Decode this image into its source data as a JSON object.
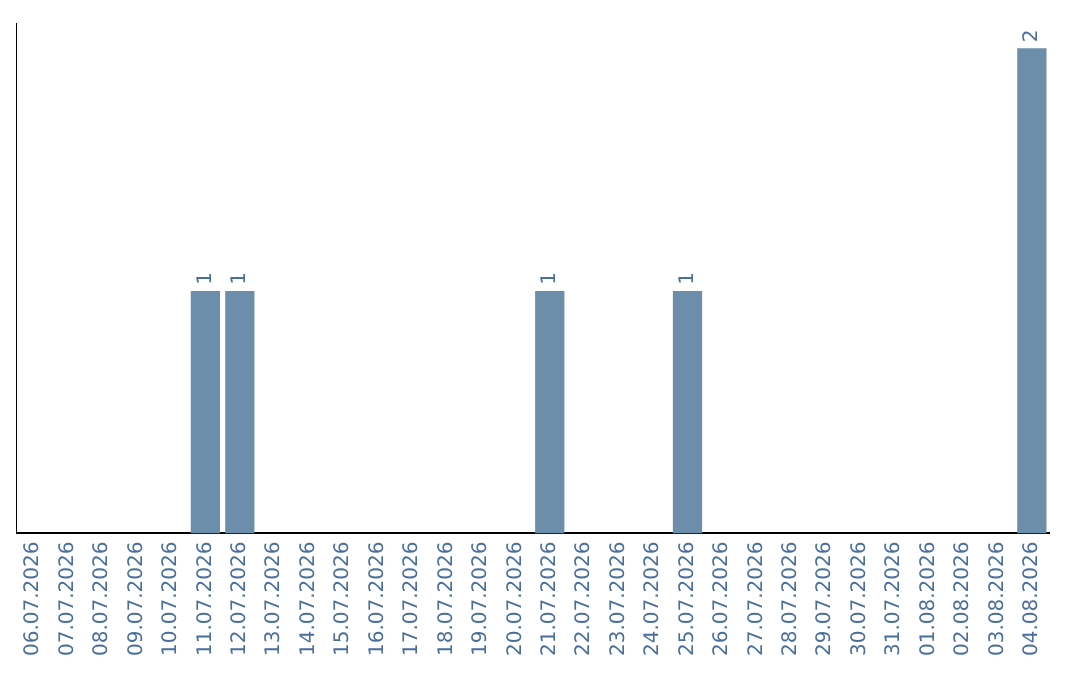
{
  "chart_data": {
    "type": "bar",
    "categories": [
      "06.07.2026",
      "07.07.2026",
      "08.07.2026",
      "09.07.2026",
      "10.07.2026",
      "11.07.2026",
      "12.07.2026",
      "13.07.2026",
      "14.07.2026",
      "15.07.2026",
      "16.07.2026",
      "17.07.2026",
      "18.07.2026",
      "19.07.2026",
      "20.07.2026",
      "21.07.2026",
      "22.07.2026",
      "23.07.2026",
      "24.07.2026",
      "25.07.2026",
      "26.07.2026",
      "27.07.2026",
      "28.07.2026",
      "29.07.2026",
      "30.07.2026",
      "31.07.2026",
      "01.08.2026",
      "02.08.2026",
      "03.08.2026",
      "04.08.2026"
    ],
    "values": [
      0,
      0,
      0,
      0,
      0,
      1,
      1,
      0,
      0,
      0,
      0,
      0,
      0,
      0,
      0,
      1,
      0,
      0,
      0,
      1,
      0,
      0,
      0,
      0,
      0,
      0,
      0,
      0,
      0,
      2
    ],
    "value_labels": [
      null,
      null,
      null,
      null,
      null,
      "1",
      "1",
      null,
      null,
      null,
      null,
      null,
      null,
      null,
      null,
      "1",
      null,
      null,
      null,
      "1",
      null,
      null,
      null,
      null,
      null,
      null,
      null,
      null,
      null,
      "2"
    ],
    "color": "#6d8eab",
    "ylim": [
      0,
      2.1
    ],
    "tick_labels": "x",
    "grid": false,
    "legend": false
  }
}
